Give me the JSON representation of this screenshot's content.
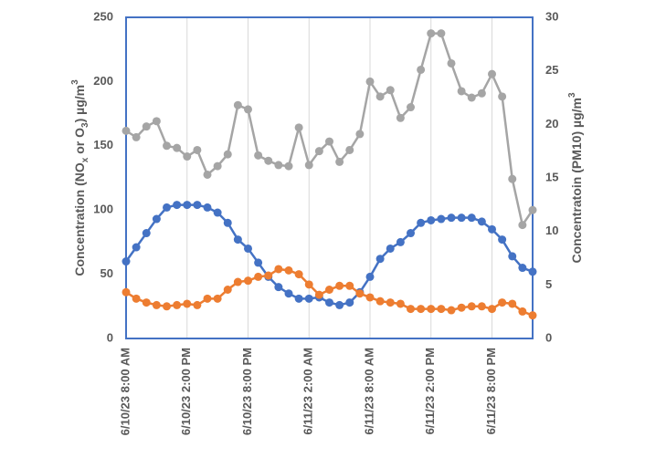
{
  "chart_data": {
    "type": "line",
    "y_label_parts": [
      "Concentration (NO",
      "x",
      " or O",
      "3",
      ") µg/m",
      "3"
    ],
    "y2_label_parts": [
      "Concentratoin (PM10) µg/m",
      "3"
    ],
    "categories": [
      "6/10/23 8:00 AM",
      null,
      null,
      null,
      null,
      null,
      "6/10/23 2:00 PM",
      null,
      null,
      null,
      null,
      null,
      "6/10/23 8:00 PM",
      null,
      null,
      null,
      null,
      null,
      "6/11/23 2:00 AM",
      null,
      null,
      null,
      null,
      null,
      "6/11/23 8:00 AM",
      null,
      null,
      null,
      null,
      null,
      "6/11/23 2:00 PM",
      null,
      null,
      null,
      null,
      null,
      "6/11/23 8:00 PM",
      null,
      null,
      null,
      null
    ],
    "series": [
      {
        "color": "#4472c4",
        "values": [
          60,
          71,
          82,
          93,
          102,
          104,
          104,
          104,
          102,
          98,
          90,
          77,
          70,
          59,
          48,
          40,
          35,
          31,
          31,
          32,
          28,
          26,
          28,
          36,
          48,
          62,
          70,
          75,
          82,
          90,
          92,
          93,
          94,
          94,
          94,
          91,
          85,
          77,
          64,
          55,
          52
        ]
      },
      {
        "color": "#ed7d31",
        "values": [
          36,
          31,
          28,
          26,
          25,
          26,
          27,
          26,
          31,
          31,
          38,
          44,
          45,
          48,
          49,
          54,
          53,
          50,
          42,
          34,
          38,
          41,
          41,
          35,
          32,
          29,
          28,
          27,
          23,
          23,
          23,
          23,
          22,
          24,
          25,
          25,
          23,
          28,
          27,
          21,
          18
        ]
      },
      {
        "color": "#a5a5a5",
        "axis": "y2",
        "values": [
          19.4,
          18.8,
          19.8,
          20.3,
          18.0,
          17.8,
          17.0,
          17.6,
          15.3,
          16.1,
          17.2,
          21.8,
          21.4,
          17.1,
          16.6,
          16.2,
          16.1,
          19.7,
          16.2,
          17.5,
          18.4,
          16.5,
          17.6,
          19.1,
          24.0,
          22.6,
          23.2,
          20.6,
          21.6,
          25.1,
          28.5,
          28.5,
          25.7,
          23.1,
          22.5,
          22.9,
          24.7,
          22.6,
          14.9,
          10.6,
          12.0
        ]
      }
    ],
    "ylim": [
      0,
      250
    ],
    "yticks": [
      0,
      50,
      100,
      150,
      200,
      250
    ],
    "y2lim": [
      0,
      30
    ],
    "y2ticks": [
      0,
      5,
      10,
      15,
      20,
      25,
      30
    ],
    "grid": "x",
    "frame_color": "#4472c4"
  }
}
